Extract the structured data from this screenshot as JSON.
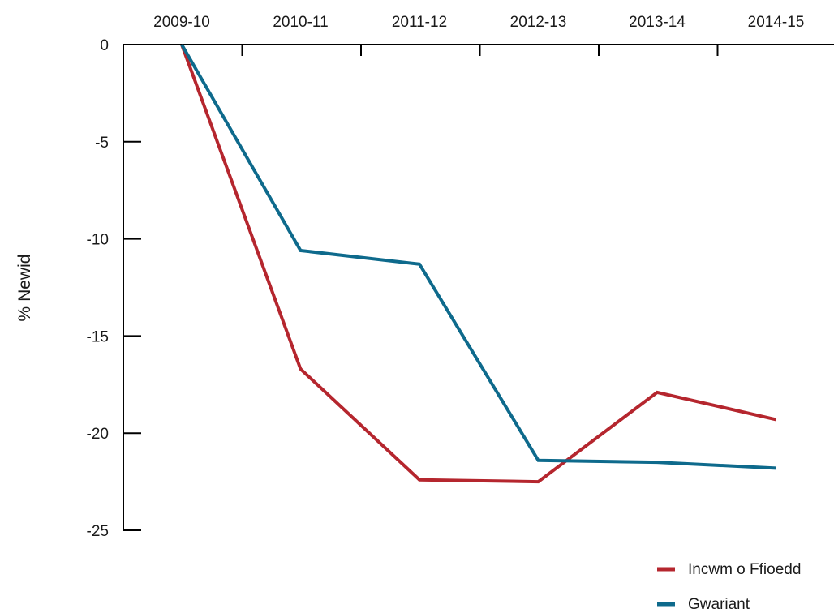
{
  "chart_data": {
    "type": "line",
    "categories": [
      "2009-10",
      "2010-11",
      "2011-12",
      "2012-13",
      "2013-14",
      "2014-15"
    ],
    "series": [
      {
        "name": "Incwm o Ffioedd",
        "color": "#b5262e",
        "values": [
          0,
          -16.7,
          -22.4,
          -22.5,
          -17.9,
          -19.3
        ]
      },
      {
        "name": "Gwariant",
        "color": "#0e6a8c",
        "values": [
          0,
          -10.6,
          -11.3,
          -21.4,
          -21.5,
          -21.8
        ]
      }
    ],
    "title": "",
    "xlabel": "",
    "ylabel": "% Newid",
    "ylim": [
      -25,
      0
    ],
    "yticks": [
      0,
      -5,
      -10,
      -15,
      -20,
      -25
    ],
    "x_axis_position": "top",
    "grid": false,
    "legend_position": "bottom-right"
  }
}
